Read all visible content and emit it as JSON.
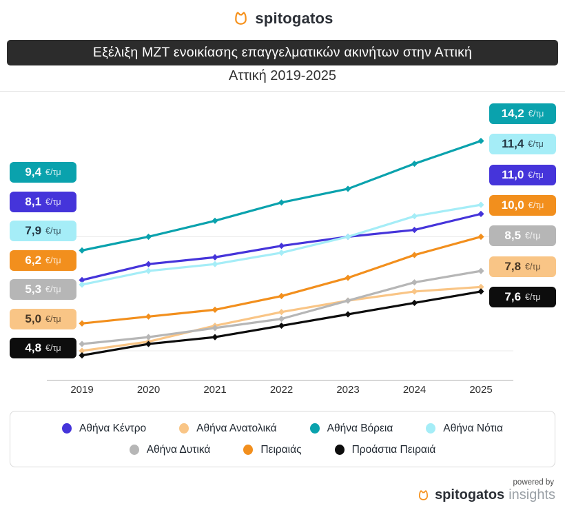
{
  "header": {
    "brand": "spitogatos",
    "title": "Εξέλιξη ΜΖΤ ενοικίασης επαγγελματικών ακινήτων στην Αττική",
    "subtitle": "Αττική 2019-2025"
  },
  "chart_data": {
    "type": "line",
    "title": "Εξέλιξη ΜΖΤ ενοικίασης επαγγελματικών ακινήτων στην Αττική",
    "subtitle": "Αττική 2019-2025",
    "unit": "€/τμ",
    "x": [
      2019,
      2020,
      2021,
      2022,
      2023,
      2024,
      2025
    ],
    "series": [
      {
        "name": "Αθήνα Κέντρο",
        "color": "#4534da",
        "text_color": "#ffffff",
        "values": [
          8.1,
          8.8,
          9.1,
          9.6,
          10.0,
          10.3,
          11.0
        ]
      },
      {
        "name": "Αθήνα Ανατολικά",
        "color": "#f9c586",
        "text_color": "#463625",
        "values": [
          5.0,
          5.4,
          6.1,
          6.7,
          7.2,
          7.6,
          7.8
        ]
      },
      {
        "name": "Αθήνα Βόρεια",
        "color": "#0aa2ad",
        "text_color": "#ffffff",
        "values": [
          9.4,
          10.0,
          10.7,
          11.5,
          12.1,
          13.2,
          14.2
        ]
      },
      {
        "name": "Αθήνα Νότια",
        "color": "#a5edf7",
        "text_color": "#243642",
        "values": [
          7.9,
          8.5,
          8.8,
          9.3,
          10.0,
          10.9,
          11.4
        ]
      },
      {
        "name": "Αθήνα Δυτικά",
        "color": "#b6b6b6",
        "text_color": "#ffffff",
        "values": [
          5.3,
          5.6,
          6.0,
          6.4,
          7.2,
          8.0,
          8.5
        ]
      },
      {
        "name": "Πειραιάς",
        "color": "#f28f1d",
        "text_color": "#ffffff",
        "values": [
          6.2,
          6.5,
          6.8,
          7.4,
          8.2,
          9.2,
          10.0
        ]
      },
      {
        "name": "Προάστια Πειραιά",
        "color": "#0d0d0d",
        "text_color": "#ffffff",
        "values": [
          4.8,
          5.3,
          5.6,
          6.1,
          6.6,
          7.1,
          7.6
        ]
      }
    ],
    "ylim": [
      3.7,
      16.4
    ],
    "gridlines": [
      5,
      10
    ],
    "grid": "horizontal-only",
    "legend_position": "bottom",
    "legend_rows": [
      [
        0,
        1,
        2,
        3
      ],
      [
        4,
        5,
        6
      ]
    ],
    "value_labels": {
      "start": true,
      "end": true,
      "decimal_separator": ","
    }
  },
  "footer": {
    "powered_by": "powered by",
    "brand": "spitogatos",
    "brand_suffix": "insights"
  }
}
